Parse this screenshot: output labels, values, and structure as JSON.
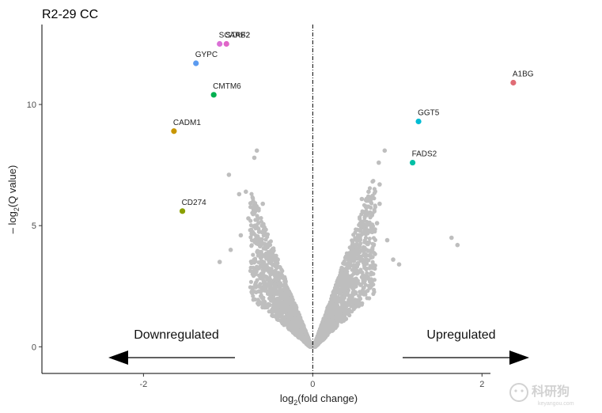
{
  "chart_data": {
    "type": "scatter",
    "title": "R2-29 CC",
    "xlabel_main": "log",
    "xlabel_sub": "2",
    "xlabel_rest": "(fold change)",
    "ylabel_main": "– log",
    "ylabel_sub": "2",
    "ylabel_rest": "(Q value)",
    "xlim": [
      -3.2,
      2.1
    ],
    "ylim": [
      -1.1,
      13.3
    ],
    "x_ticks": [
      -2,
      0,
      2
    ],
    "x_tick_labels": [
      "-2",
      "0",
      "2"
    ],
    "y_ticks": [
      0,
      5,
      10
    ],
    "y_tick_labels": [
      "0",
      "5",
      "10"
    ],
    "vline_x": 0,
    "background_color": "#bebebe",
    "labeled_genes": [
      {
        "name": "A1BG",
        "x": 2.37,
        "y": 10.9,
        "color": "#e06c75"
      },
      {
        "name": "GGT5",
        "x": 1.25,
        "y": 9.3,
        "color": "#00bcd4"
      },
      {
        "name": "FADS2",
        "x": 1.18,
        "y": 7.6,
        "color": "#00bfa5"
      },
      {
        "name": "SCARF2",
        "x": -1.1,
        "y": 12.5,
        "color": "#da70d6"
      },
      {
        "name": "STAB2",
        "x": -1.02,
        "y": 12.5,
        "color": "#e066c8"
      },
      {
        "name": "GYPC",
        "x": -1.38,
        "y": 11.7,
        "color": "#5b9bf0"
      },
      {
        "name": "CMTM6",
        "x": -1.17,
        "y": 10.4,
        "color": "#00b050"
      },
      {
        "name": "CADM1",
        "x": -1.64,
        "y": 8.9,
        "color": "#c89600"
      },
      {
        "name": "CD274",
        "x": -1.54,
        "y": 5.6,
        "color": "#8aa000"
      }
    ],
    "background_outliers": [
      [
        -0.66,
        8.1
      ],
      [
        -0.69,
        7.8
      ],
      [
        -0.99,
        7.1
      ],
      [
        -0.79,
        6.4
      ],
      [
        -0.87,
        6.3
      ],
      [
        -0.59,
        5.9
      ],
      [
        -0.64,
        5.7
      ],
      [
        -1.1,
        3.5
      ],
      [
        -0.97,
        4.0
      ],
      [
        -0.6,
        5.0
      ],
      [
        0.85,
        8.1
      ],
      [
        0.78,
        7.6
      ],
      [
        0.79,
        6.7
      ],
      [
        0.66,
        6.4
      ],
      [
        0.79,
        5.9
      ],
      [
        0.63,
        5.6
      ],
      [
        0.76,
        5.1
      ],
      [
        1.64,
        4.5
      ],
      [
        1.71,
        4.2
      ],
      [
        0.95,
        3.6
      ],
      [
        1.02,
        3.4
      ],
      [
        0.88,
        4.4
      ],
      [
        -0.85,
        4.6
      ],
      [
        0.58,
        6.1
      ],
      [
        -0.76,
        5.3
      ]
    ],
    "annotations": [
      {
        "text": "Downregulated",
        "side": "left"
      },
      {
        "text": "Upregulated",
        "side": "right"
      }
    ]
  },
  "watermark": {
    "text": "科研狗",
    "sub": "keyangou.com"
  }
}
